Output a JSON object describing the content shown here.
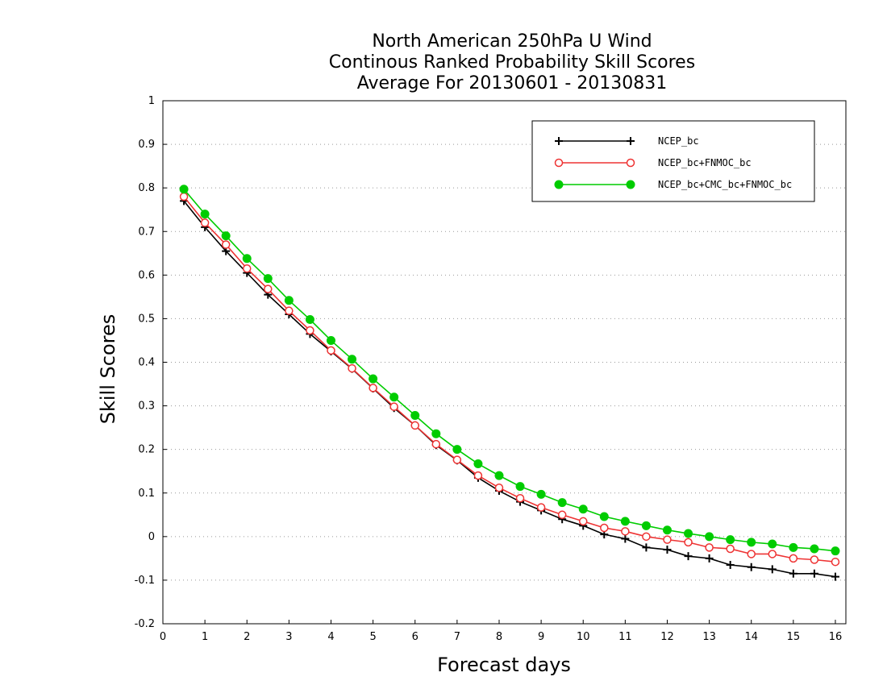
{
  "chart_data": {
    "type": "line",
    "title_lines": [
      "North American 250hPa U Wind",
      "Continous Ranked Probability Skill Scores",
      "Average For 20130601 - 20130831"
    ],
    "xlabel": "Forecast days",
    "ylabel": "Skill Scores",
    "xlim": [
      0,
      16.25
    ],
    "ylim": [
      -0.2,
      1
    ],
    "x_ticks": [
      "0",
      "1",
      "2",
      "3",
      "4",
      "5",
      "6",
      "7",
      "8",
      "9",
      "10",
      "11",
      "12",
      "13",
      "14",
      "15",
      "16"
    ],
    "y_ticks": [
      "-0.2",
      "-0.1",
      "0",
      "0.1",
      "0.2",
      "0.3",
      "0.4",
      "0.5",
      "0.6",
      "0.7",
      "0.8",
      "0.9",
      "1"
    ],
    "grid": "horizontal dotted",
    "legend_position": "top-right",
    "x": [
      0.5,
      1,
      1.5,
      2,
      2.5,
      3,
      3.5,
      4,
      4.5,
      5,
      5.5,
      6,
      6.5,
      7,
      7.5,
      8,
      8.5,
      9,
      9.5,
      10,
      10.5,
      11,
      11.5,
      12,
      12.5,
      13,
      13.5,
      14,
      14.5,
      15,
      15.5,
      16
    ],
    "series": [
      {
        "name": "NCEP_bc",
        "color": "#000000",
        "marker": "plus",
        "values": [
          0.77,
          0.71,
          0.655,
          0.605,
          0.555,
          0.51,
          0.465,
          0.425,
          0.385,
          0.34,
          0.295,
          0.255,
          0.21,
          0.175,
          0.135,
          0.105,
          0.08,
          0.06,
          0.04,
          0.025,
          0.005,
          -0.005,
          -0.025,
          -0.03,
          -0.045,
          -0.05,
          -0.065,
          -0.07,
          -0.075,
          -0.085,
          -0.085,
          -0.092
        ]
      },
      {
        "name": "NCEP_bc+FNMOC_bc",
        "color": "#ee3333",
        "marker": "open-circle",
        "values": [
          0.78,
          0.72,
          0.67,
          0.615,
          0.568,
          0.518,
          0.473,
          0.427,
          0.386,
          0.341,
          0.298,
          0.255,
          0.212,
          0.176,
          0.14,
          0.112,
          0.088,
          0.067,
          0.05,
          0.035,
          0.02,
          0.012,
          0.0,
          -0.007,
          -0.013,
          -0.025,
          -0.028,
          -0.04,
          -0.04,
          -0.05,
          -0.053,
          -0.058
        ]
      },
      {
        "name": "NCEP_bc+CMC_bc+FNMOC_bc",
        "color": "#00cc00",
        "marker": "filled-circle",
        "values": [
          0.797,
          0.74,
          0.69,
          0.638,
          0.592,
          0.542,
          0.498,
          0.45,
          0.407,
          0.362,
          0.32,
          0.278,
          0.236,
          0.2,
          0.167,
          0.14,
          0.115,
          0.097,
          0.078,
          0.063,
          0.046,
          0.035,
          0.025,
          0.015,
          0.007,
          0.0,
          -0.007,
          -0.013,
          -0.017,
          -0.025,
          -0.028,
          -0.033
        ]
      }
    ]
  }
}
